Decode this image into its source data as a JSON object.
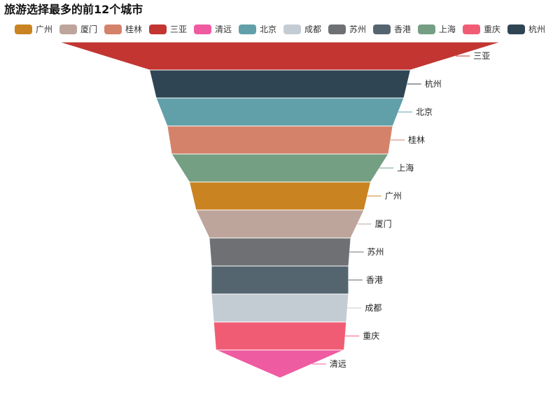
{
  "title": "旅游选择最多的前12个城市",
  "chart_data": {
    "type": "funnel",
    "title": "旅游选择最多的前12个城市",
    "sort": "descending",
    "legend_position": "top",
    "legend": [
      "广州",
      "厦门",
      "桂林",
      "三亚",
      "清远",
      "北京",
      "成都",
      "苏州",
      "香港",
      "上海",
      "重庆",
      "杭州"
    ],
    "categories": [
      "三亚",
      "杭州",
      "北京",
      "桂林",
      "上海",
      "广州",
      "厦门",
      "苏州",
      "香港",
      "成都",
      "重庆",
      "清远"
    ],
    "values": [
      100,
      59,
      56,
      51,
      49,
      41,
      38,
      32,
      31,
      31,
      30,
      29
    ],
    "colors": {
      "广州": "#c98421",
      "厦门": "#bea59c",
      "桂林": "#d4826a",
      "三亚": "#c23531",
      "清远": "#ef5ba1",
      "北京": "#61a0a8",
      "成都": "#c4ccd3",
      "苏州": "#6e7074",
      "香港": "#546570",
      "上海": "#749f83",
      "重庆": "#f15c75",
      "杭州": "#2f4554"
    }
  }
}
